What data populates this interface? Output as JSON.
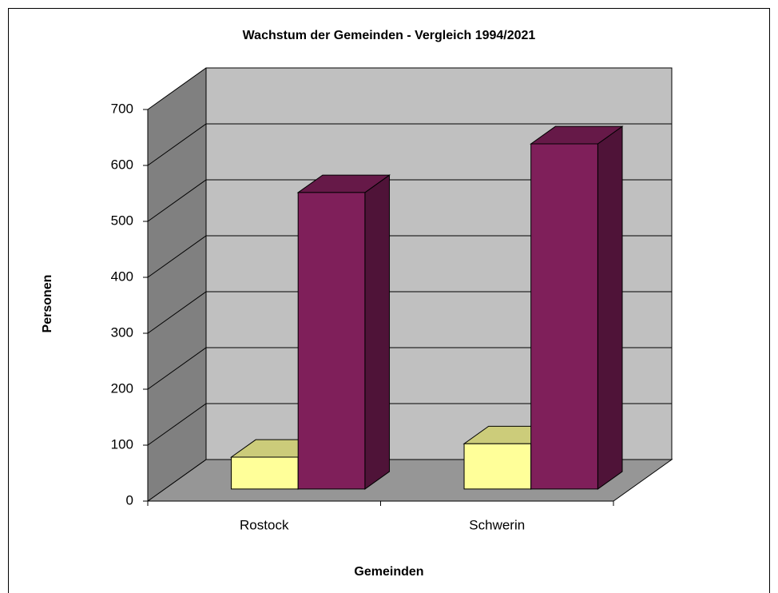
{
  "chart_data": {
    "type": "bar3d",
    "title": "Wachstum der Gemeinden - Vergleich 1994/2021",
    "x_label": "Gemeinden",
    "y_label": "Personen",
    "categories": [
      "Rostock",
      "Schwerin"
    ],
    "series": [
      {
        "color": "#ffff99",
        "values": [
          57,
          81
        ]
      },
      {
        "color": "#7f1f5a",
        "values": [
          530,
          617
        ]
      }
    ],
    "ylim": [
      0,
      700
    ],
    "yticks": [
      0,
      100,
      200,
      300,
      400,
      500,
      600,
      700
    ],
    "grid": true
  }
}
